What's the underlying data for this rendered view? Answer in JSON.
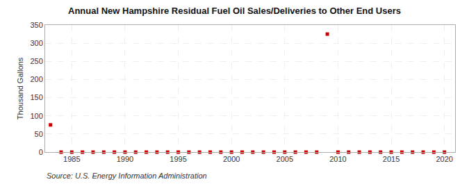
{
  "chart_data": {
    "type": "scatter",
    "title": "Annual New Hampshire Residual Fuel Oil Sales/Deliveries to Other End Users",
    "ylabel": "Thousand Gallons",
    "annotations": [
      "Source: U.S. Energy Information Administration"
    ],
    "x": [
      1983,
      1984,
      1985,
      1986,
      1987,
      1988,
      1989,
      1990,
      1991,
      1992,
      1993,
      1994,
      1995,
      1996,
      1997,
      1998,
      1999,
      2000,
      2001,
      2002,
      2003,
      2004,
      2005,
      2006,
      2007,
      2008,
      2009,
      2010,
      2011,
      2012,
      2013,
      2014,
      2015,
      2016,
      2017,
      2018,
      2019,
      2020
    ],
    "values": [
      75,
      0,
      0,
      0,
      0,
      0,
      0,
      0,
      0,
      0,
      0,
      0,
      0,
      0,
      0,
      0,
      0,
      0,
      0,
      0,
      0,
      0,
      0,
      0,
      0,
      0,
      325,
      0,
      0,
      0,
      0,
      0,
      0,
      0,
      0,
      0,
      0,
      0
    ],
    "color": "#cc0000",
    "marker": "square",
    "xlim": [
      1982.5,
      2021
    ],
    "xticks": [
      1985,
      1990,
      1995,
      2000,
      2005,
      2010,
      2015,
      2020
    ],
    "ylim": [
      0,
      350
    ],
    "yticks": [
      0,
      50,
      100,
      150,
      200,
      250,
      300,
      350
    ],
    "grid": true
  }
}
